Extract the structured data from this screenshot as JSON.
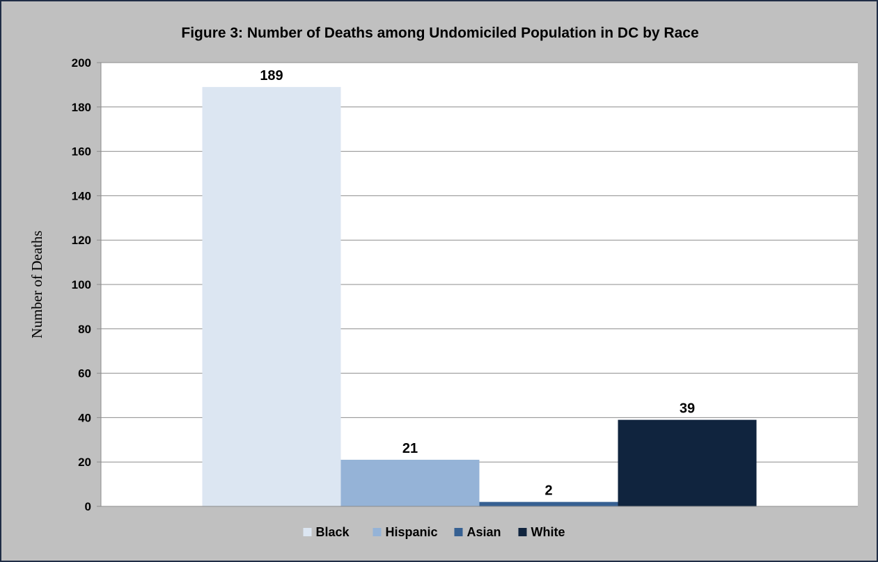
{
  "chart_data": {
    "type": "bar",
    "title": "Figure 3: Number of Deaths among Undomiciled Population in DC by Race",
    "ylabel": "Number of Deaths",
    "xlabel": "",
    "ylim": [
      0,
      200
    ],
    "y_ticks": [
      0,
      20,
      40,
      60,
      80,
      100,
      120,
      140,
      160,
      180,
      200
    ],
    "grid": true,
    "legend_position": "bottom",
    "categories": [
      ""
    ],
    "series": [
      {
        "name": "Black",
        "values": [
          189
        ],
        "color": "#dce6f2"
      },
      {
        "name": "Hispanic",
        "values": [
          21
        ],
        "color": "#95b3d7"
      },
      {
        "name": "Asian",
        "values": [
          2
        ],
        "color": "#366092"
      },
      {
        "name": "White",
        "values": [
          39
        ],
        "color": "#10243e"
      }
    ]
  }
}
